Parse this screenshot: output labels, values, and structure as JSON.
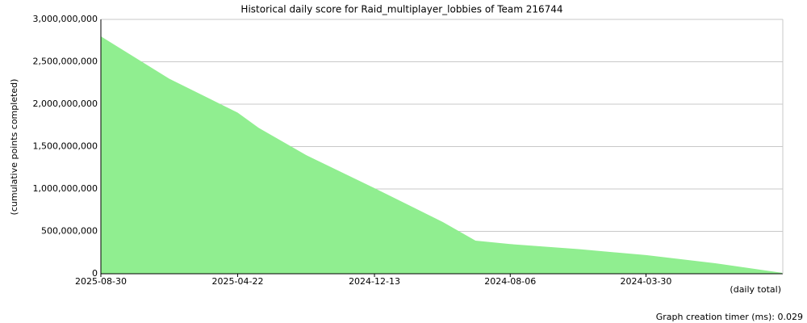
{
  "chart_data": {
    "type": "area",
    "title": "Historical daily score for Raid_multiplayer_lobbies of Team 216744",
    "y_label": "(cumulative points completed)",
    "x_note": "(daily total)",
    "footer": "Graph creation timer (ms): 0.029",
    "color": "#90ee90",
    "grid": true,
    "x": [
      "2025-08-30",
      "2025-06-26",
      "2025-04-22",
      "2025-04-02",
      "2025-02-16",
      "2024-12-13",
      "2024-10-09",
      "2024-09-08",
      "2024-08-06",
      "2024-06-02",
      "2024-03-30",
      "2024-01-25",
      "2023-11-21"
    ],
    "values": [
      2800000000,
      2300000000,
      1900000000,
      1720000000,
      1400000000,
      1010000000,
      610000000,
      390000000,
      350000000,
      290000000,
      220000000,
      125000000,
      10000000
    ],
    "xlim": [
      "2025-08-30",
      "2023-11-21"
    ],
    "xticks": [
      "2025-08-30",
      "2025-04-22",
      "2024-12-13",
      "2024-08-06",
      "2024-03-30"
    ],
    "ylim": [
      0,
      3000000000
    ],
    "yticks": [
      0,
      {
        "value": 500000000,
        "label": "500,000,000"
      },
      {
        "value": 1000000000,
        "label": "1,000,000,000"
      },
      {
        "value": 1500000000,
        "label": "1,500,000,000"
      },
      {
        "value": 2000000000,
        "label": "2,000,000,000"
      },
      {
        "value": 2500000000,
        "label": "2,500,000,000"
      },
      {
        "value": 3000000000,
        "label": "3,000,000,000"
      }
    ]
  }
}
